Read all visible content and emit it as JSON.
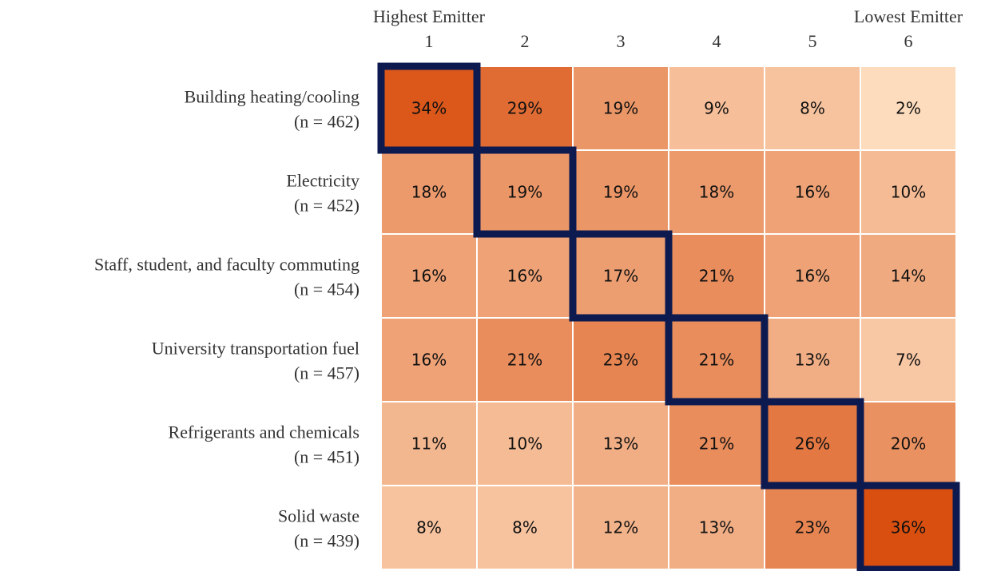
{
  "chart_data": {
    "type": "heatmap",
    "title": "",
    "column_header_left": "Highest Emitter",
    "column_header_right": "Lowest Emitter",
    "columns": [
      "1",
      "2",
      "3",
      "4",
      "5",
      "6"
    ],
    "rows": [
      {
        "label": "Building heating/cooling",
        "n_label": "(n = 462)",
        "values": [
          34,
          29,
          19,
          9,
          8,
          2
        ]
      },
      {
        "label": "Electricity",
        "n_label": "(n = 452)",
        "values": [
          18,
          19,
          19,
          18,
          16,
          10
        ]
      },
      {
        "label": "Staff, student, and faculty commuting",
        "n_label": "(n = 454)",
        "values": [
          16,
          16,
          17,
          21,
          16,
          14
        ]
      },
      {
        "label": "University transportation fuel",
        "n_label": "(n = 457)",
        "values": [
          16,
          21,
          23,
          21,
          13,
          7
        ]
      },
      {
        "label": "Refrigerants and chemicals",
        "n_label": "(n = 451)",
        "values": [
          11,
          10,
          13,
          21,
          26,
          20
        ]
      },
      {
        "label": "Solid waste",
        "n_label": "(n = 439)",
        "values": [
          8,
          8,
          12,
          13,
          23,
          36
        ]
      }
    ],
    "value_suffix": "%",
    "highlight": "diagonal",
    "colors": {
      "low": "#fddcbd",
      "high": "#d94f10",
      "highlight_border": "#0d1a4f",
      "cell_border": "#ffffff"
    }
  }
}
